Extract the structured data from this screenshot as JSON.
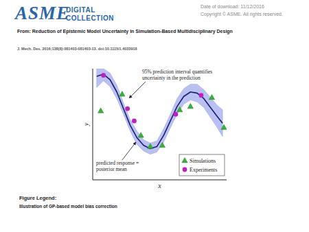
{
  "header": {
    "logo_text": "ASME",
    "logo_sub": [
      "DIGITAL",
      "COLLECTION"
    ],
    "download": "Date of download:  11/12/2016",
    "copyright": "Copyright © ASME. All rights reserved."
  },
  "title": "From: Reduction of Epistemic Model Uncertainty in Simulation-Based Multidisciplinary Design",
  "citation": "J. Mech. Des. 2016;138(8):081403-081403-13. doi:10.1115/1.4033918",
  "chart_data": {
    "type": "line",
    "x_label": "x",
    "y_label": "y",
    "xlim": [
      0,
      10
    ],
    "ylim": [
      0,
      10
    ],
    "tick_labels": false,
    "legend": "lower right",
    "annotations": [
      [
        "95% prediction interval quantifies",
        "uncertainty in the prediction"
      ],
      [
        "predicted response =",
        "posterior mean"
      ]
    ],
    "curve": {
      "color": "#1c1c6b",
      "x": [
        0.3,
        0.8,
        1.3,
        1.8,
        2.3,
        2.8,
        3.3,
        3.8,
        4.3,
        4.8,
        5.3,
        5.8,
        6.3,
        6.8,
        7.3,
        7.8,
        8.3,
        8.8,
        9.3,
        9.7
      ],
      "values": [
        9.3,
        9.5,
        9.0,
        7.9,
        6.4,
        4.9,
        3.8,
        3.1,
        2.8,
        3.0,
        4.0,
        5.3,
        6.6,
        7.5,
        7.9,
        7.8,
        7.3,
        6.5,
        5.7,
        5.1
      ],
      "lower": [
        8.3,
        8.9,
        8.4,
        7.3,
        5.9,
        4.4,
        3.2,
        2.6,
        2.3,
        2.5,
        3.4,
        4.7,
        5.9,
        6.8,
        7.2,
        7.0,
        6.5,
        5.6,
        4.7,
        3.9
      ],
      "upper": [
        10.0,
        10.0,
        9.6,
        8.5,
        6.9,
        5.4,
        4.4,
        3.6,
        3.3,
        3.5,
        4.6,
        5.9,
        7.3,
        8.2,
        8.6,
        8.6,
        8.1,
        7.4,
        6.7,
        6.3
      ]
    },
    "series": [
      {
        "name": "Simulations",
        "type": "scatter",
        "marker": "triangle",
        "color": "#36b236",
        "x": [
          0.6,
          2.2,
          3.6,
          4.3,
          5.2,
          6.5,
          7.3,
          8.9,
          9.8
        ],
        "values": [
          6.2,
          7.7,
          4.0,
          3.0,
          3.1,
          6.3,
          6.6,
          7.4,
          4.7
        ]
      },
      {
        "name": "Experiments",
        "type": "scatter",
        "marker": "circle",
        "color": "#c21fc2",
        "x": [
          0.8,
          2.6,
          3.1,
          6.2,
          8.1
        ],
        "values": [
          9.4,
          6.4,
          5.3,
          5.9,
          7.6
        ]
      }
    ]
  },
  "figure_legend": {
    "heading": "Figure Legend:",
    "text": "Illustration of GP-based model bias correction"
  }
}
